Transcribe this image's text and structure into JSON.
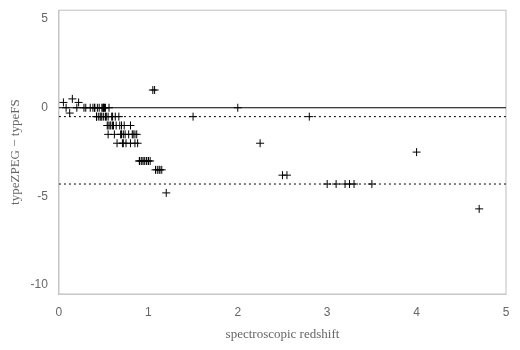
{
  "chart_data": {
    "type": "scatter",
    "xlabel": "spectroscopic redshift",
    "ylabel": "typeZPEG − typeFS",
    "xlim": [
      0,
      5
    ],
    "ylim": [
      -10.5,
      5.5
    ],
    "xticks": [
      0,
      1,
      2,
      3,
      4,
      5
    ],
    "yticks": [
      -10,
      -5,
      0,
      5
    ],
    "grid": false,
    "marker": "+",
    "color": "black",
    "x": [
      0.05,
      0.08,
      0.12,
      0.15,
      0.2,
      0.22,
      0.28,
      0.3,
      0.35,
      0.38,
      0.4,
      0.4,
      0.42,
      0.42,
      0.43,
      0.44,
      0.45,
      0.46,
      0.47,
      0.48,
      0.48,
      0.49,
      0.5,
      0.5,
      0.5,
      0.51,
      0.52,
      0.52,
      0.53,
      0.54,
      0.55,
      0.55,
      0.55,
      0.56,
      0.57,
      0.58,
      0.59,
      0.6,
      0.6,
      0.61,
      0.62,
      0.63,
      0.64,
      0.65,
      0.67,
      0.68,
      0.69,
      0.7,
      0.7,
      0.71,
      0.72,
      0.72,
      0.73,
      0.74,
      0.75,
      0.78,
      0.8,
      0.8,
      0.82,
      0.83,
      0.85,
      0.85,
      0.87,
      0.88,
      0.9,
      0.9,
      0.92,
      0.93,
      0.95,
      0.96,
      0.98,
      1.0,
      1.0,
      1.02,
      1.05,
      1.07,
      1.08,
      1.1,
      1.12,
      1.13,
      1.15,
      1.2,
      1.5,
      2.0,
      2.25,
      2.5,
      2.55,
      2.8,
      3.0,
      3.1,
      3.2,
      3.25,
      3.3,
      3.5,
      4.0,
      4.7
    ],
    "values": [
      0.3,
      0.0,
      -0.3,
      0.5,
      0.0,
      0.3,
      0.0,
      0.0,
      0.0,
      0.0,
      0.0,
      0.0,
      -0.5,
      -0.5,
      0.0,
      -0.5,
      0.0,
      -0.5,
      -0.5,
      0.0,
      -0.5,
      0.0,
      0.0,
      0.0,
      -0.5,
      0.0,
      -0.5,
      0.0,
      -0.5,
      -1.0,
      -0.5,
      -1.0,
      -1.5,
      0.0,
      -1.0,
      -1.0,
      -0.5,
      -1.0,
      -0.5,
      -1.0,
      -1.5,
      -0.5,
      -1.0,
      -2.0,
      -0.5,
      -1.0,
      -1.5,
      -1.0,
      -1.5,
      -2.0,
      -1.5,
      -2.0,
      -1.0,
      -1.5,
      -2.0,
      -1.5,
      -1.0,
      -2.0,
      -1.5,
      -1.5,
      -1.5,
      -2.0,
      -1.5,
      -2.0,
      -3.0,
      -3.0,
      -3.0,
      -3.0,
      -3.0,
      -3.0,
      -3.0,
      -3.0,
      -3.0,
      -3.0,
      1.0,
      1.0,
      -3.5,
      -3.5,
      -3.5,
      -3.5,
      -3.5,
      -4.8,
      -0.5,
      0.0,
      -2.0,
      -3.8,
      -3.8,
      -0.5,
      -4.3,
      -4.3,
      -4.3,
      -4.3,
      -4.3,
      -4.3,
      -2.5,
      -5.7
    ],
    "hlines": [
      {
        "y": 0,
        "line_style": "solid",
        "color": "black"
      },
      {
        "y": -0.5,
        "line_style": "dotted",
        "color": "black"
      },
      {
        "y": -4.3,
        "line_style": "dotted",
        "color": "black"
      }
    ]
  }
}
